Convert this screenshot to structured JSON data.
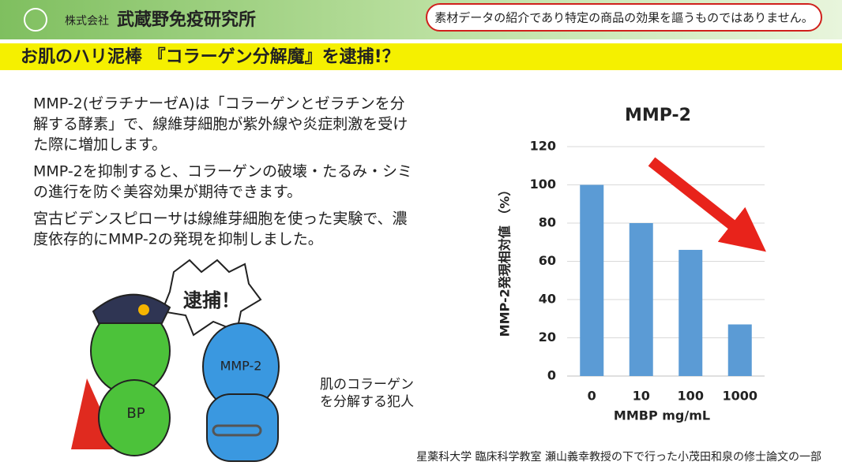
{
  "header": {
    "company_prefix": "株式会社",
    "company_name": "武蔵野免疫研究所",
    "disclaimer": "素材データの紹介であり特定の商品の効果を謳うものではありません。"
  },
  "title": "お肌のハリ泥棒 『コラーゲン分解魔』を逮捕!？",
  "paragraphs": [
    [
      "MMP-2(ゼラチナーゼA)は「コラーゲンとゼラチンを分",
      "解する酵素」で、線維芽細胞が紫外線や炎症刺激を受け",
      "た際に増加します。"
    ],
    [
      "MMP-2を抑制すると、コラーゲンの破壊・たるみ・シミ",
      "の進行を防ぐ美容効果が期待できます。"
    ],
    [
      "宮古ビデンスピローサは線維芽細胞を使った実験で、濃",
      "度依存的にMMP-2の発現を抑制しました。"
    ]
  ],
  "illustration": {
    "shout": "逮捕！",
    "culprit_label": "MMP-2",
    "police_label": "BP",
    "caption": [
      "肌のコラーゲン",
      "を分解する犯人"
    ]
  },
  "footer": "星薬科大学 臨床科学教室 瀬山義幸教授の下で行った小茂田和泉の修士論文の一部",
  "chart_data": {
    "type": "bar",
    "title": "MMP-2",
    "x_label": "MMBP mg/mL",
    "y_label": "MMP-2発現相対値 （%）",
    "categories": [
      "0",
      "10",
      "100",
      "1000"
    ],
    "values": [
      100,
      80,
      66,
      27
    ],
    "color": "#5b9bd5",
    "ylim": [
      0,
      120
    ],
    "yticks": [
      0,
      20,
      40,
      60,
      80,
      100,
      120
    ],
    "grid": true
  }
}
